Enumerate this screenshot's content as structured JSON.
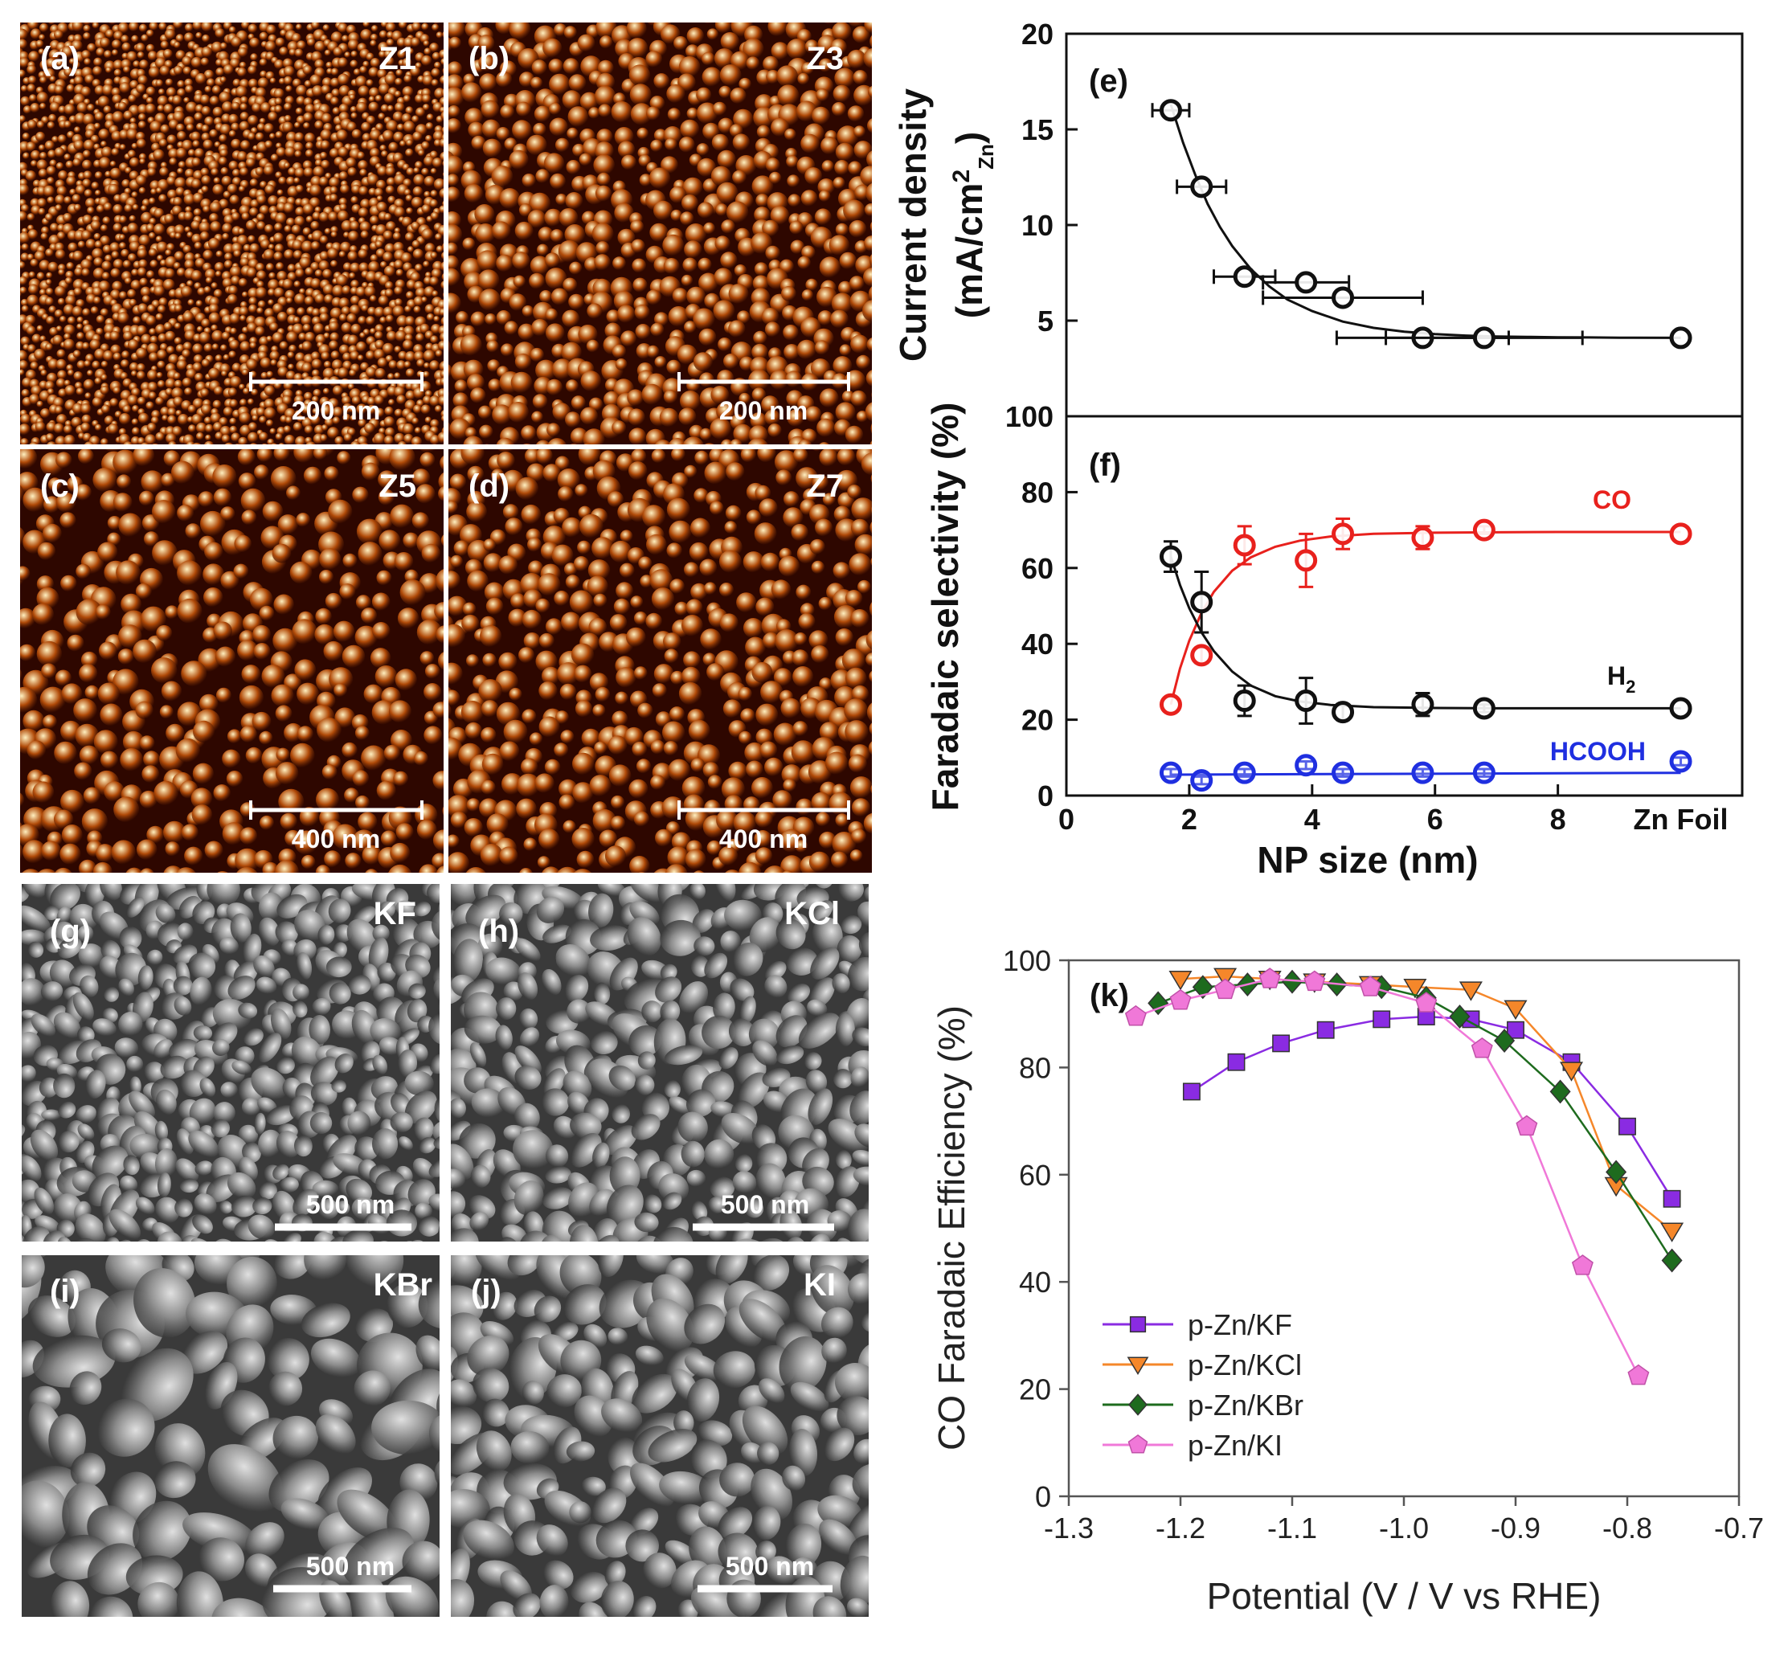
{
  "images": [
    {
      "panel": "(a)",
      "tag": "Z1",
      "scale": "200 nm",
      "kind": "afm",
      "seed": 1,
      "blob": 6,
      "density": 1.0
    },
    {
      "panel": "(b)",
      "tag": "Z3",
      "scale": "200 nm",
      "kind": "afm",
      "seed": 2,
      "blob": 11,
      "density": 1.0
    },
    {
      "panel": "(c)",
      "tag": "Z5",
      "scale": "400 nm",
      "kind": "afm",
      "seed": 3,
      "blob": 13,
      "density": 0.8
    },
    {
      "panel": "(d)",
      "tag": "Z7",
      "scale": "400 nm",
      "kind": "afm",
      "seed": 4,
      "blob": 12,
      "density": 0.9
    },
    {
      "panel": "(g)",
      "tag": "KF",
      "scale": "500 nm",
      "kind": "sem",
      "seed": 5,
      "blob": 14,
      "density": 1.0
    },
    {
      "panel": "(h)",
      "tag": "KCl",
      "scale": "500 nm",
      "kind": "sem",
      "seed": 6,
      "blob": 17,
      "density": 1.0
    },
    {
      "panel": "(i)",
      "tag": "KBr",
      "scale": "500 nm",
      "kind": "sem",
      "seed": 7,
      "blob": 30,
      "density": 0.9
    },
    {
      "panel": "(j)",
      "tag": "KI",
      "scale": "500 nm",
      "kind": "sem",
      "seed": 8,
      "blob": 22,
      "density": 1.0
    }
  ],
  "colors": {
    "afm_dark": "#2e0700",
    "afm_mid": "#b04a08",
    "afm_light": "#fff0c0",
    "sem_dark": "#3a3a3a",
    "sem_mid": "#8a8a8a",
    "sem_light": "#e0e0e0"
  },
  "chart_data": [
    {
      "panel": "(e)",
      "type": "scatter",
      "ylabel_line1": "Current density",
      "ylabel_line2": "(mA/cm",
      "ylabel_sup": "2",
      "ylabel_sub": "Zn",
      "ylabel_close": ")",
      "ylim": [
        0,
        20
      ],
      "yticks": [
        5,
        10,
        15,
        20
      ],
      "xlim": [
        0,
        11
      ],
      "series": [
        {
          "color": "#111111",
          "x": [
            1.7,
            2.2,
            2.9,
            3.9,
            4.5,
            5.8,
            6.8,
            10.0
          ],
          "y": [
            16.0,
            12.0,
            7.3,
            7.0,
            6.2,
            4.1,
            4.1,
            4.1
          ],
          "xerr": [
            0.3,
            0.4,
            0.5,
            0.7,
            1.3,
            1.4,
            1.6,
            0
          ],
          "fit_x": [
            1.7,
            1.9,
            2.1,
            2.3,
            2.5,
            2.7,
            3.0,
            3.3,
            3.6,
            4.0,
            4.5,
            5.0,
            5.5,
            6.0,
            6.5,
            7.0,
            7.5,
            8.0,
            8.5,
            9.0,
            10.0
          ],
          "fit_y": [
            16.3,
            14.3,
            12.6,
            11.1,
            9.9,
            8.9,
            7.7,
            6.8,
            6.1,
            5.5,
            4.95,
            4.62,
            4.42,
            4.3,
            4.22,
            4.17,
            4.15,
            4.13,
            4.12,
            4.11,
            4.1
          ]
        }
      ]
    },
    {
      "panel": "(f)",
      "type": "scatter",
      "ylabel": "Faradaic selectivity (%)",
      "xlabel": "NP size (nm)",
      "ylim": [
        0,
        100
      ],
      "yticks": [
        0,
        20,
        40,
        60,
        80,
        100
      ],
      "xlim": [
        0,
        11
      ],
      "xticks": [
        0,
        2,
        4,
        6,
        8
      ],
      "xtick_labels": [
        "0",
        "2",
        "4",
        "6",
        "8"
      ],
      "x_extra_label": "Zn Foil",
      "x_extra_pos": 10.0,
      "series": [
        {
          "name": "CO",
          "color": "#e8211d",
          "x": [
            1.7,
            2.2,
            2.9,
            3.9,
            4.5,
            5.8,
            6.8,
            10.0
          ],
          "y": [
            24,
            37,
            66,
            62,
            69,
            68,
            70,
            69
          ],
          "yerr": [
            0,
            2,
            5,
            7,
            4,
            3,
            1,
            0
          ],
          "fit_x": [
            1.7,
            1.85,
            2.0,
            2.2,
            2.4,
            2.7,
            3.0,
            3.4,
            3.8,
            4.3,
            5.0,
            6.0,
            7.0,
            8.0,
            9.0,
            10.0
          ],
          "fit_y": [
            24,
            33.5,
            40.8,
            48.2,
            53.7,
            59.3,
            62.8,
            65.6,
            67.2,
            68.3,
            69.0,
            69.3,
            69.4,
            69.5,
            69.5,
            69.5
          ]
        },
        {
          "name": "H",
          "name_sub": "2",
          "color": "#111111",
          "x": [
            1.7,
            2.2,
            2.9,
            3.9,
            4.5,
            5.8,
            6.8,
            10.0
          ],
          "y": [
            63,
            51,
            25,
            25,
            22,
            24,
            23,
            23
          ],
          "yerr": [
            4,
            8,
            4,
            6,
            2,
            3,
            1,
            0
          ],
          "fit_x": [
            1.7,
            1.85,
            2.0,
            2.2,
            2.4,
            2.7,
            3.0,
            3.4,
            3.8,
            4.3,
            5.0,
            6.0,
            7.0,
            8.0,
            9.0,
            10.0
          ],
          "fit_y": [
            63,
            55.5,
            49.4,
            43.0,
            38.1,
            32.7,
            29.0,
            26.2,
            24.8,
            23.9,
            23.3,
            23.1,
            23.0,
            23.0,
            23.0,
            23.0
          ]
        },
        {
          "name": "HCOOH",
          "color": "#1f2fe0",
          "x": [
            1.7,
            2.2,
            2.9,
            3.9,
            4.5,
            5.8,
            6.8,
            10.0
          ],
          "y": [
            6,
            4,
            6,
            8,
            6,
            6,
            6,
            9
          ],
          "yerr": [
            1,
            1,
            1,
            1,
            1,
            1,
            1,
            1
          ],
          "fit_x": [
            1.7,
            10.0
          ],
          "fit_y": [
            5.5,
            6.0
          ]
        }
      ]
    },
    {
      "panel": "(k)",
      "type": "line",
      "xlabel": "Potential (V / V vs RHE)",
      "ylabel": "CO Faradaic Efficiency (%)",
      "xlim": [
        -1.3,
        -0.7
      ],
      "ylim": [
        0,
        100
      ],
      "xticks": [
        -1.3,
        -1.2,
        -1.1,
        -1.0,
        -0.9,
        -0.8,
        -0.7
      ],
      "xtick_labels": [
        "-1.3",
        "-1.2",
        "-1.1",
        "-1.0",
        "-0.9",
        "-0.8",
        "-0.7"
      ],
      "yticks": [
        0,
        20,
        40,
        60,
        80,
        100
      ],
      "legend_position": "bottom-left",
      "series": [
        {
          "name": "p-Zn/KF",
          "color": "#8a2be2",
          "marker": "square",
          "x": [
            -1.19,
            -1.15,
            -1.11,
            -1.07,
            -1.02,
            -0.98,
            -0.94,
            -0.9,
            -0.85,
            -0.8,
            -0.76
          ],
          "y": [
            75.5,
            81,
            84.5,
            87,
            89,
            89.5,
            89,
            87,
            81,
            69,
            55.5
          ]
        },
        {
          "name": "p-Zn/KCl",
          "color": "#f5872a",
          "marker": "triangle-down",
          "x": [
            -1.2,
            -1.16,
            -1.12,
            -1.08,
            -1.03,
            -0.99,
            -0.94,
            -0.9,
            -0.85,
            -0.81,
            -0.76
          ],
          "y": [
            96.5,
            97,
            96.5,
            96,
            95.5,
            95,
            94.5,
            91,
            79.5,
            58,
            49.5
          ]
        },
        {
          "name": "p-Zn/KBr",
          "color": "#1e6b1e",
          "marker": "diamond",
          "x": [
            -1.22,
            -1.18,
            -1.14,
            -1.1,
            -1.06,
            -1.02,
            -0.98,
            -0.95,
            -0.91,
            -0.86,
            -0.81,
            -0.76
          ],
          "y": [
            92,
            95,
            95.5,
            96,
            95.5,
            95,
            93,
            89.5,
            85,
            75.5,
            60.5,
            44
          ]
        },
        {
          "name": "p-Zn/KI",
          "color": "#f078d8",
          "marker": "pentagon",
          "x": [
            -1.24,
            -1.2,
            -1.16,
            -1.12,
            -1.08,
            -1.03,
            -0.98,
            -0.93,
            -0.89,
            -0.84,
            -0.79
          ],
          "y": [
            89.5,
            92.5,
            94.5,
            96.5,
            96,
            95,
            92,
            83.5,
            69,
            43,
            22.5
          ]
        }
      ]
    }
  ]
}
